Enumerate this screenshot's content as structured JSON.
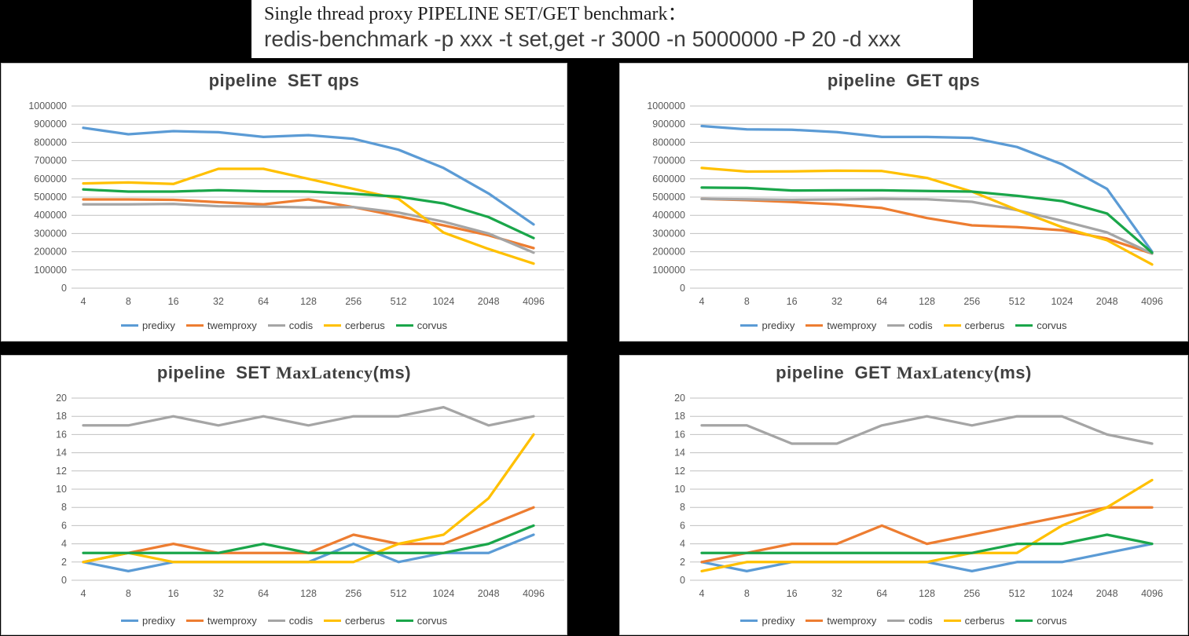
{
  "header": {
    "title_line1": "Single thread proxy PIPELINE SET/GET benchmark：",
    "title_line2": "redis-benchmark -p xxx -t set,get -r 3000 -n 5000000 -P 20 -d xxx"
  },
  "colors": {
    "predixy": "#5B9BD5",
    "twemproxy": "#ED7D31",
    "codis": "#A5A5A5",
    "cerberus": "#FFC000",
    "corvus": "#1AA64A"
  },
  "legend_order": [
    "predixy",
    "twemproxy",
    "codis",
    "cerberus",
    "corvus"
  ],
  "categories": [
    "4",
    "8",
    "16",
    "32",
    "64",
    "128",
    "256",
    "512",
    "1024",
    "2048",
    "4096"
  ],
  "chart_data": [
    {
      "name": "pipeline-set-qps",
      "type": "line",
      "title_segments": [
        {
          "text": "pipeline  SET qps",
          "serif": false
        }
      ],
      "xlabel": "",
      "ylabel": "",
      "ylim": [
        0,
        1000000
      ],
      "grid": true,
      "legend_position": "bottom",
      "yticks": [
        "1000000",
        "900000",
        "800000",
        "700000",
        "600000",
        "500000",
        "400000",
        "300000",
        "200000",
        "100000",
        "0"
      ],
      "categories": [
        "4",
        "8",
        "16",
        "32",
        "64",
        "128",
        "256",
        "512",
        "1024",
        "2048",
        "4096"
      ],
      "series": [
        {
          "name": "predixy",
          "values": [
            880000,
            845000,
            862000,
            856000,
            830000,
            840000,
            820000,
            760000,
            660000,
            520000,
            350000
          ]
        },
        {
          "name": "twemproxy",
          "values": [
            487000,
            487000,
            485000,
            472000,
            460000,
            487000,
            445000,
            395000,
            345000,
            290000,
            220000
          ]
        },
        {
          "name": "codis",
          "values": [
            460000,
            460000,
            462000,
            450000,
            448000,
            443000,
            445000,
            415000,
            365000,
            300000,
            195000
          ]
        },
        {
          "name": "cerberus",
          "values": [
            575000,
            580000,
            572000,
            655000,
            655000,
            600000,
            545000,
            490000,
            305000,
            215000,
            135000
          ]
        },
        {
          "name": "corvus",
          "values": [
            542000,
            530000,
            530000,
            538000,
            532000,
            530000,
            518000,
            502000,
            465000,
            390000,
            275000
          ]
        }
      ]
    },
    {
      "name": "pipeline-get-qps",
      "type": "line",
      "title_segments": [
        {
          "text": "pipeline  GET qps",
          "serif": false
        }
      ],
      "xlabel": "",
      "ylabel": "",
      "ylim": [
        0,
        1000000
      ],
      "grid": true,
      "legend_position": "bottom",
      "yticks": [
        "1000000",
        "900000",
        "800000",
        "700000",
        "600000",
        "500000",
        "400000",
        "300000",
        "200000",
        "100000",
        "0"
      ],
      "categories": [
        "4",
        "8",
        "16",
        "32",
        "64",
        "128",
        "256",
        "512",
        "1024",
        "2048",
        "4096"
      ],
      "series": [
        {
          "name": "predixy",
          "values": [
            890000,
            872000,
            870000,
            857000,
            830000,
            830000,
            825000,
            775000,
            680000,
            545000,
            200000
          ]
        },
        {
          "name": "twemproxy",
          "values": [
            490000,
            483000,
            473000,
            460000,
            440000,
            385000,
            345000,
            335000,
            318000,
            272000,
            190000
          ]
        },
        {
          "name": "codis",
          "values": [
            490000,
            488000,
            485000,
            487000,
            490000,
            488000,
            474000,
            428000,
            370000,
            306000,
            190000
          ]
        },
        {
          "name": "cerberus",
          "values": [
            660000,
            640000,
            641000,
            645000,
            643000,
            605000,
            530000,
            430000,
            335000,
            263000,
            130000
          ]
        },
        {
          "name": "corvus",
          "values": [
            552000,
            550000,
            536000,
            537000,
            537000,
            533000,
            530000,
            507000,
            478000,
            410000,
            195000
          ]
        }
      ]
    },
    {
      "name": "pipeline-set-maxlatency",
      "type": "line",
      "title_segments": [
        {
          "text": "pipeline  SET ",
          "serif": false
        },
        {
          "text": "MaxLatency",
          "serif": true
        },
        {
          "text": "(ms)",
          "serif": false
        }
      ],
      "xlabel": "",
      "ylabel": "",
      "ylim": [
        0,
        20
      ],
      "grid": true,
      "legend_position": "bottom",
      "yticks": [
        "20",
        "18",
        "16",
        "14",
        "12",
        "10",
        "8",
        "6",
        "4",
        "2",
        "0"
      ],
      "categories": [
        "4",
        "8",
        "16",
        "32",
        "64",
        "128",
        "256",
        "512",
        "1024",
        "2048",
        "4096"
      ],
      "series": [
        {
          "name": "predixy",
          "values": [
            2,
            1,
            2,
            2,
            2,
            2,
            4,
            2,
            3,
            3,
            5
          ]
        },
        {
          "name": "twemproxy",
          "values": [
            2,
            3,
            4,
            3,
            3,
            3,
            5,
            4,
            4,
            6,
            8
          ]
        },
        {
          "name": "codis",
          "values": [
            17,
            17,
            18,
            17,
            18,
            17,
            18,
            18,
            19,
            17,
            18
          ]
        },
        {
          "name": "cerberus",
          "values": [
            2,
            3,
            2,
            2,
            2,
            2,
            2,
            4,
            5,
            9,
            16
          ]
        },
        {
          "name": "corvus",
          "values": [
            3,
            3,
            3,
            3,
            4,
            3,
            3,
            3,
            3,
            4,
            6
          ]
        }
      ]
    },
    {
      "name": "pipeline-get-maxlatency",
      "type": "line",
      "title_segments": [
        {
          "text": "pipeline  GET ",
          "serif": false
        },
        {
          "text": "MaxLatency",
          "serif": true
        },
        {
          "text": "(ms)",
          "serif": false
        }
      ],
      "xlabel": "",
      "ylabel": "",
      "ylim": [
        0,
        20
      ],
      "grid": true,
      "legend_position": "bottom",
      "yticks": [
        "20",
        "18",
        "16",
        "14",
        "12",
        "10",
        "8",
        "6",
        "4",
        "2",
        "0"
      ],
      "categories": [
        "4",
        "8",
        "16",
        "32",
        "64",
        "128",
        "256",
        "512",
        "1024",
        "2048",
        "4096"
      ],
      "series": [
        {
          "name": "predixy",
          "values": [
            2,
            1,
            2,
            2,
            2,
            2,
            1,
            2,
            2,
            3,
            4
          ]
        },
        {
          "name": "twemproxy",
          "values": [
            2,
            3,
            4,
            4,
            6,
            4,
            5,
            6,
            7,
            8,
            8
          ]
        },
        {
          "name": "codis",
          "values": [
            17,
            17,
            15,
            15,
            17,
            18,
            17,
            18,
            18,
            16,
            15
          ]
        },
        {
          "name": "cerberus",
          "values": [
            1,
            2,
            2,
            2,
            2,
            2,
            3,
            3,
            6,
            8,
            11
          ]
        },
        {
          "name": "corvus",
          "values": [
            3,
            3,
            3,
            3,
            3,
            3,
            3,
            4,
            4,
            5,
            4
          ]
        }
      ]
    }
  ]
}
